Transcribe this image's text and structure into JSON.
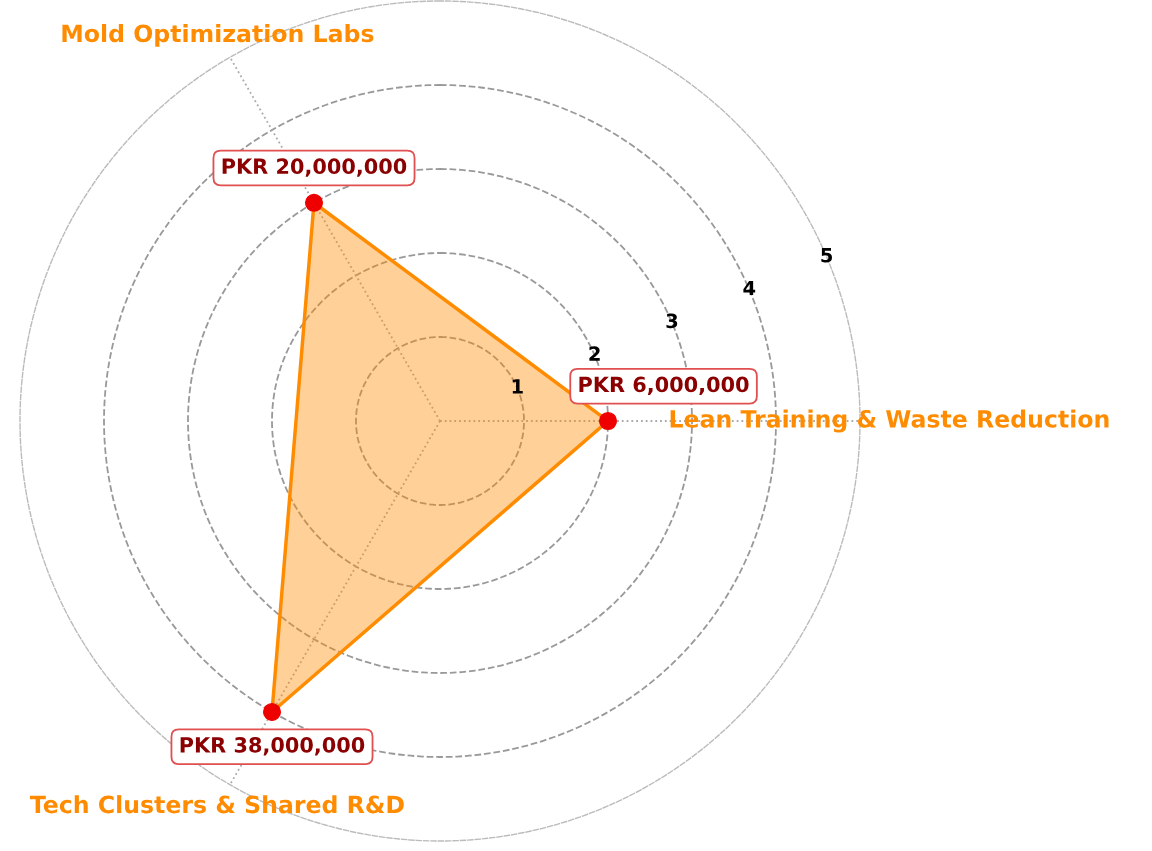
{
  "chart_data": {
    "type": "radar",
    "categories": [
      "Lean Training & Waste Reduction",
      "Tech Clusters & Shared R&D",
      "Mold Optimization Labs"
    ],
    "series": [
      {
        "color": "#ff8c00",
        "values": [
          2,
          4,
          3
        ],
        "value_labels": [
          "PKR 6,000,000",
          "PKR 38,000,000",
          "PKR 20,000,000"
        ]
      }
    ],
    "ylim": [
      0,
      5
    ],
    "yticks": [
      1,
      2,
      3,
      4,
      5
    ],
    "grid": true,
    "marker": "circle",
    "line_style": "solid"
  }
}
